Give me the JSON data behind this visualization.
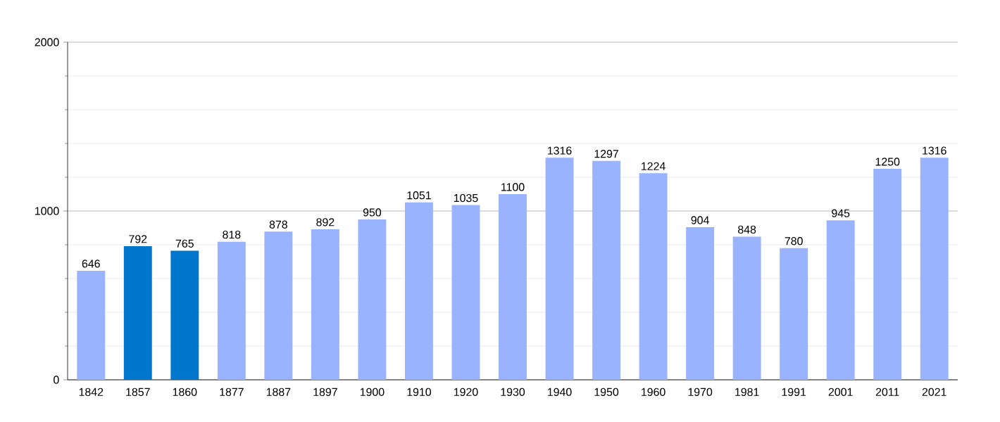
{
  "chart_data": {
    "type": "bar",
    "categories": [
      "1842",
      "1857",
      "1860",
      "1877",
      "1887",
      "1897",
      "1900",
      "1910",
      "1920",
      "1930",
      "1940",
      "1950",
      "1960",
      "1970",
      "1981",
      "1991",
      "2001",
      "2011",
      "2021"
    ],
    "values": [
      646,
      792,
      765,
      818,
      878,
      892,
      950,
      1051,
      1035,
      1100,
      1316,
      1297,
      1224,
      904,
      848,
      780,
      945,
      1250,
      1316
    ],
    "colors": [
      "#99b3ff",
      "#0077cc",
      "#0077cc",
      "#99b3ff",
      "#99b3ff",
      "#99b3ff",
      "#99b3ff",
      "#99b3ff",
      "#99b3ff",
      "#99b3ff",
      "#99b3ff",
      "#99b3ff",
      "#99b3ff",
      "#99b3ff",
      "#99b3ff",
      "#99b3ff",
      "#99b3ff",
      "#99b3ff",
      "#99b3ff"
    ],
    "ylim": [
      0,
      2000
    ],
    "yticks": [
      0,
      1000,
      2000
    ],
    "grid": "y",
    "data_labels": true
  }
}
